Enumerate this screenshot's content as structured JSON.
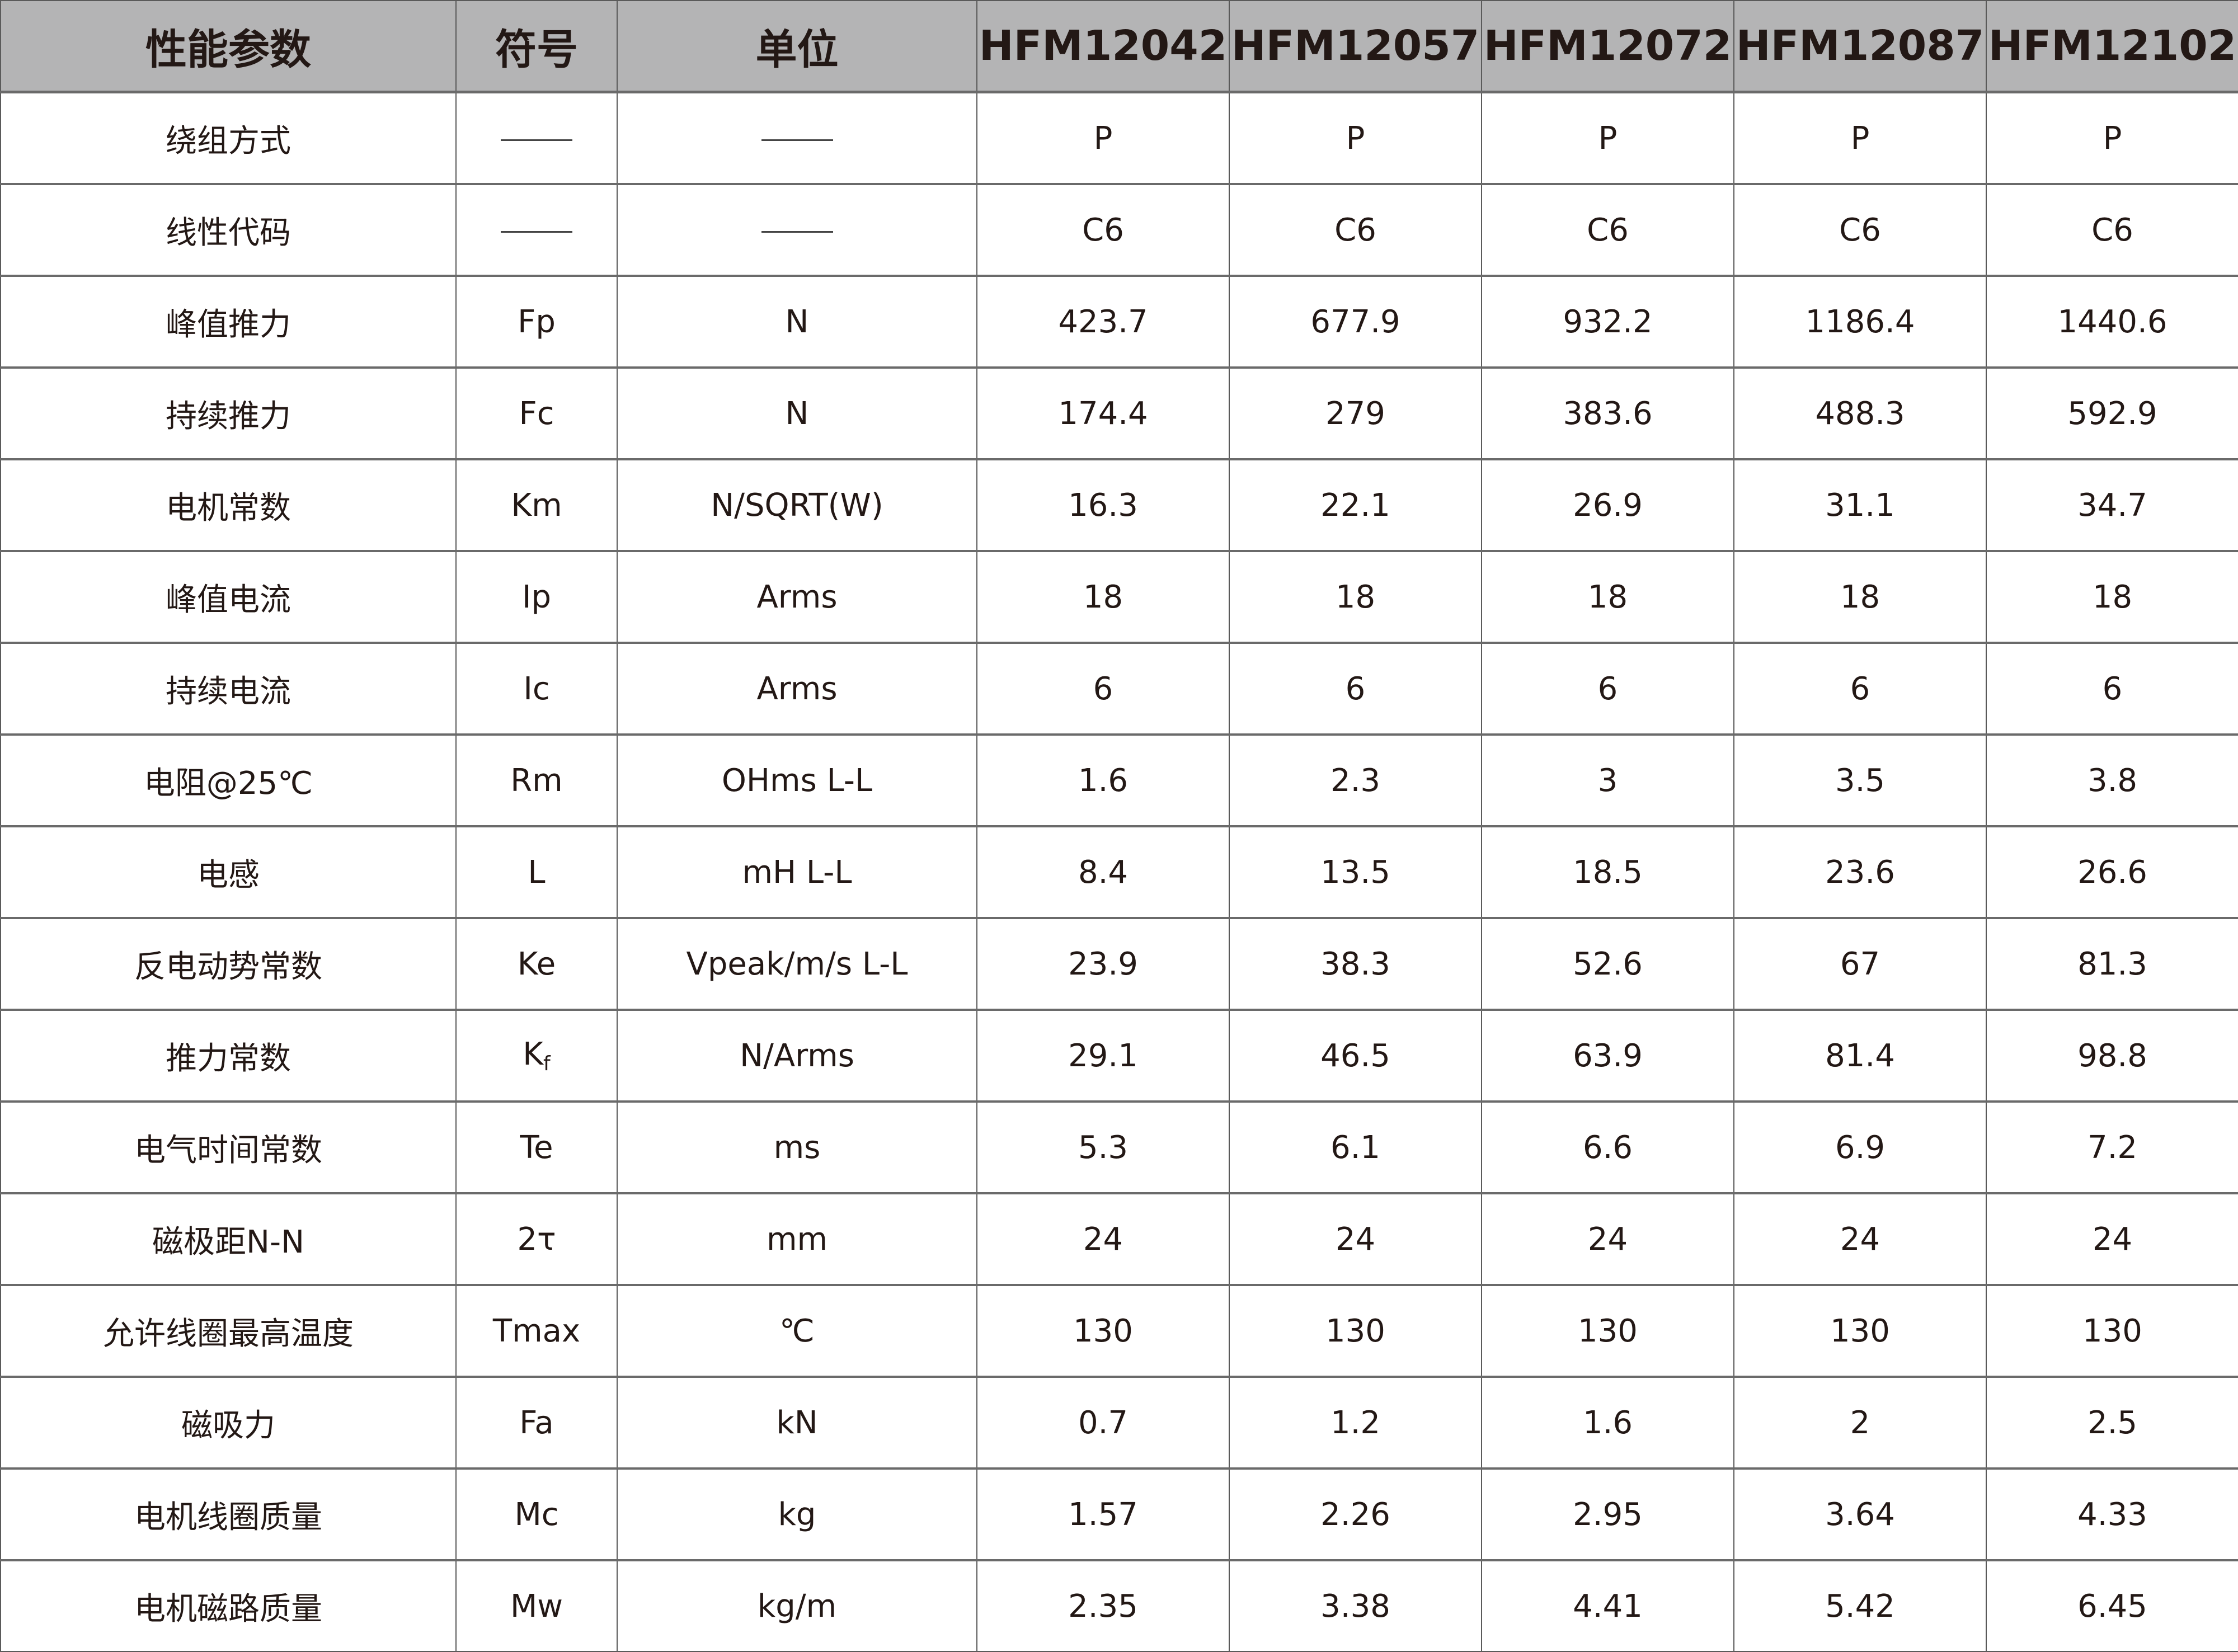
{
  "header": [
    "性能参数",
    "符号",
    "单位",
    "HFM12042",
    "HFM12057",
    "HFM12072",
    "HFM12087",
    "HFM12102"
  ],
  "rows": [
    {
      "param": "绕组方式",
      "symbol": "——",
      "unit": "——",
      "values": [
        "P",
        "P",
        "P",
        "P",
        "P"
      ]
    },
    {
      "param": "线性代码",
      "symbol": "——",
      "unit": "——",
      "values": [
        "C6",
        "C6",
        "C6",
        "C6",
        "C6"
      ]
    },
    {
      "param": "峰值推力",
      "symbol": "Fp",
      "unit": "N",
      "values": [
        "423.7",
        "677.9",
        "932.2",
        "1186.4",
        "1440.6"
      ]
    },
    {
      "param": "持续推力",
      "symbol": "Fc",
      "unit": "N",
      "values": [
        "174.4",
        "279",
        "383.6",
        "488.3",
        "592.9"
      ]
    },
    {
      "param": "电机常数",
      "symbol": "Km",
      "unit": "N/SQRT(W)",
      "values": [
        "16.3",
        "22.1",
        "26.9",
        "31.1",
        "34.7"
      ]
    },
    {
      "param": "峰值电流",
      "symbol": "Ip",
      "unit": "Arms",
      "values": [
        "18",
        "18",
        "18",
        "18",
        "18"
      ]
    },
    {
      "param": "持续电流",
      "symbol": "Ic",
      "unit": "Arms",
      "values": [
        "6",
        "6",
        "6",
        "6",
        "6"
      ]
    },
    {
      "param": "电阻@25℃",
      "symbol": "Rm",
      "unit": "OHms L-L",
      "values": [
        "1.6",
        "2.3",
        "3",
        "3.5",
        "3.8"
      ]
    },
    {
      "param": "电感",
      "symbol": "L",
      "unit": "mH L-L",
      "values": [
        "8.4",
        "13.5",
        "18.5",
        "23.6",
        "26.6"
      ]
    },
    {
      "param": "反电动势常数",
      "symbol": "Ke",
      "unit": "Vpeak/m/s L-L",
      "values": [
        "23.9",
        "38.3",
        "52.6",
        "67",
        "81.3"
      ]
    },
    {
      "param": "推力常数",
      "symbol": "K",
      "symbol_sub": "f",
      "unit": "N/Arms",
      "values": [
        "29.1",
        "46.5",
        "63.9",
        "81.4",
        "98.8"
      ]
    },
    {
      "param": "电气时间常数",
      "symbol": "Te",
      "unit": "ms",
      "values": [
        "5.3",
        "6.1",
        "6.6",
        "6.9",
        "7.2"
      ]
    },
    {
      "param": "磁极距N-N",
      "symbol": "2τ",
      "unit": "mm",
      "values": [
        "24",
        "24",
        "24",
        "24",
        "24"
      ]
    },
    {
      "param": "允许线圈最高温度",
      "symbol": "Tmax",
      "unit": "℃",
      "values": [
        "130",
        "130",
        "130",
        "130",
        "130"
      ]
    },
    {
      "param": "磁吸力",
      "symbol": "Fa",
      "unit": "kN",
      "values": [
        "0.7",
        "1.2",
        "1.6",
        "2",
        "2.5"
      ]
    },
    {
      "param": "电机线圈质量",
      "symbol": "Mc",
      "unit": "kg",
      "values": [
        "1.57",
        "2.26",
        "2.95",
        "3.64",
        "4.33"
      ]
    },
    {
      "param": "电机磁路质量",
      "symbol": "Mw",
      "unit": "kg/m",
      "values": [
        "2.35",
        "3.38",
        "4.41",
        "5.42",
        "6.45"
      ]
    }
  ],
  "colors": {
    "header_bg": "#b4b4b5",
    "text": "#231815",
    "border": "#5a5a5a"
  }
}
